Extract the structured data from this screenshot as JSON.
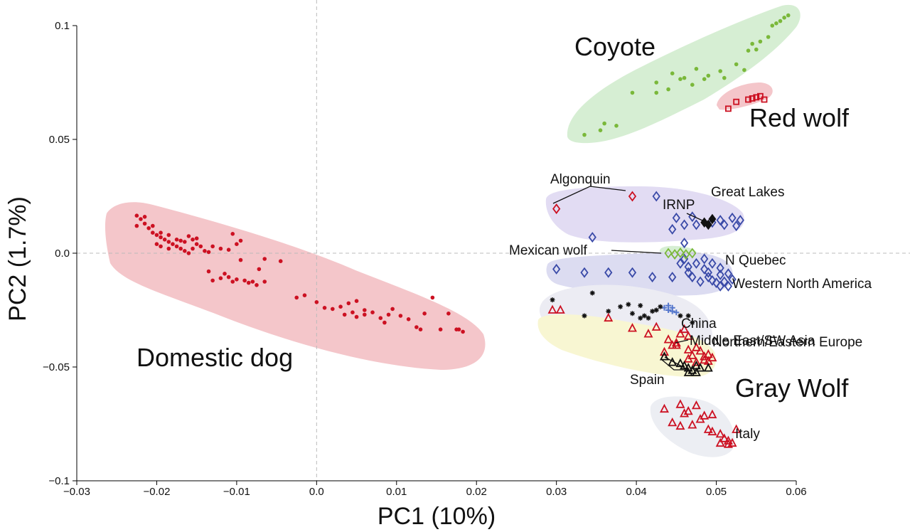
{
  "chart_data": {
    "type": "scatter",
    "xlabel": "PC1 (10%)",
    "ylabel": "PC2 (1.7%)",
    "xlim": [
      -0.03,
      0.06
    ],
    "ylim": [
      -0.1,
      0.1
    ],
    "xticks": [
      -0.03,
      -0.02,
      -0.01,
      0.0,
      0.01,
      0.02,
      0.03,
      0.04,
      0.05,
      0.06
    ],
    "yticks": [
      0.1,
      0.05,
      0.0,
      -0.05,
      -0.1
    ],
    "xtick_labels": [
      "−0.03",
      "−0.02",
      "−0.01",
      "0.0",
      "0.01",
      "0.02",
      "0.03",
      "0.04",
      "0.05",
      "0.06"
    ],
    "ytick_labels": [
      "0.1",
      "0.05",
      "0.0",
      "−0.05",
      "−0.1"
    ],
    "reference_lines": [
      {
        "axis": "x",
        "value": 0
      },
      {
        "axis": "y",
        "value": 0
      }
    ],
    "colors": {
      "dog": "#cc1122",
      "coyote": "#7ab83a",
      "gray_wolf_red": "#cc1122",
      "gray_wolf_blue": "#3a4aa8",
      "black": "#111111",
      "china": "#5577cc"
    },
    "groups": [
      {
        "label": "Domestic dog",
        "hull_color": "#f2c4c8"
      },
      {
        "label": "Coyote",
        "hull_color": "#d3ecd0"
      },
      {
        "label": "Red wolf",
        "hull_color": "#f2c4c8"
      },
      {
        "label": "Gray Wolf",
        "hull_color": "#e6e6f4"
      }
    ],
    "annotations": [
      {
        "text": "Algonquin"
      },
      {
        "text": "Great Lakes"
      },
      {
        "text": "IRNP"
      },
      {
        "text": "Mexican wolf"
      },
      {
        "text": "N Quebec"
      },
      {
        "text": "Western North America"
      },
      {
        "text": "China"
      },
      {
        "text": "Middle East/SW Asia"
      },
      {
        "text": "Northern/Eastern Europe"
      },
      {
        "text": "Spain"
      },
      {
        "text": "Italy"
      }
    ],
    "series": [
      {
        "marker": "dot",
        "color": "#cc1122",
        "points": [
          [
            -0.0225,
            0.0165
          ],
          [
            -0.022,
            0.015
          ],
          [
            -0.0215,
            0.013
          ],
          [
            -0.021,
            0.011
          ],
          [
            -0.0205,
            0.009
          ],
          [
            -0.02,
            0.008
          ],
          [
            -0.0195,
            0.007
          ],
          [
            -0.019,
            0.006
          ],
          [
            -0.0185,
            0.005
          ],
          [
            -0.018,
            0.004
          ],
          [
            -0.0175,
            0.003
          ],
          [
            -0.017,
            0.002
          ],
          [
            -0.0165,
            0.001
          ],
          [
            -0.016,
            0.0
          ],
          [
            -0.0155,
            0.002
          ],
          [
            -0.015,
            0.004
          ],
          [
            -0.0145,
            0.003
          ],
          [
            -0.014,
            0.001
          ],
          [
            -0.0135,
            0.0005
          ],
          [
            -0.013,
            0.003
          ],
          [
            -0.012,
            0.002
          ],
          [
            -0.011,
            0.0015
          ],
          [
            -0.01,
            0.004
          ],
          [
            -0.0095,
            0.0055
          ],
          [
            -0.0205,
            0.012
          ],
          [
            -0.0195,
            0.009
          ],
          [
            -0.0185,
            0.008
          ],
          [
            -0.0175,
            0.006
          ],
          [
            -0.0165,
            0.005
          ],
          [
            -0.0155,
            0.006
          ],
          [
            -0.0215,
            0.016
          ],
          [
            -0.0225,
            0.012
          ],
          [
            -0.02,
            0.004
          ],
          [
            -0.0185,
            0.002
          ],
          [
            -0.017,
            0.0055
          ],
          [
            -0.016,
            0.0075
          ],
          [
            -0.015,
            0.0065
          ],
          [
            -0.0195,
            0.003
          ],
          [
            -0.0105,
            0.0085
          ],
          [
            -0.0095,
            -0.003
          ],
          [
            -0.0072,
            -0.007
          ],
          [
            -0.0135,
            -0.008
          ],
          [
            -0.013,
            -0.012
          ],
          [
            -0.012,
            -0.011
          ],
          [
            -0.011,
            -0.0105
          ],
          [
            -0.01,
            -0.0115
          ],
          [
            -0.009,
            -0.012
          ],
          [
            -0.0085,
            -0.013
          ],
          [
            -0.008,
            -0.0125
          ],
          [
            -0.0075,
            -0.014
          ],
          [
            -0.0115,
            -0.009
          ],
          [
            -0.0105,
            -0.0125
          ],
          [
            -0.0065,
            -0.0125
          ],
          [
            -0.0045,
            -0.0035
          ],
          [
            -0.0065,
            -0.0025
          ],
          [
            -0.0025,
            -0.0195
          ],
          [
            -0.0015,
            -0.0185
          ],
          [
            0.0,
            -0.0215
          ],
          [
            0.001,
            -0.024
          ],
          [
            0.002,
            -0.0245
          ],
          [
            0.003,
            -0.0235
          ],
          [
            0.004,
            -0.022
          ],
          [
            0.005,
            -0.021
          ],
          [
            0.006,
            -0.025
          ],
          [
            0.0045,
            -0.026
          ],
          [
            0.0035,
            -0.027
          ],
          [
            0.005,
            -0.028
          ],
          [
            0.006,
            -0.027
          ],
          [
            0.007,
            -0.026
          ],
          [
            0.008,
            -0.0285
          ],
          [
            0.009,
            -0.027
          ],
          [
            0.0095,
            -0.0245
          ],
          [
            0.0105,
            -0.0275
          ],
          [
            0.0085,
            -0.0305
          ],
          [
            0.0115,
            -0.029
          ],
          [
            0.0125,
            -0.0325
          ],
          [
            0.013,
            -0.0335
          ],
          [
            0.0135,
            -0.0265
          ],
          [
            0.0145,
            -0.0195
          ],
          [
            0.0155,
            -0.0335
          ],
          [
            0.0175,
            -0.0335
          ],
          [
            0.0165,
            -0.0265
          ],
          [
            0.0178,
            -0.0335
          ],
          [
            0.0183,
            -0.0345
          ]
        ]
      },
      {
        "marker": "dot",
        "color": "#7ab83a",
        "points": [
          [
            0.0335,
            0.052
          ],
          [
            0.0355,
            0.054
          ],
          [
            0.036,
            0.057
          ],
          [
            0.0375,
            0.056
          ],
          [
            0.0395,
            0.0705
          ],
          [
            0.0425,
            0.075
          ],
          [
            0.044,
            0.072
          ],
          [
            0.0445,
            0.079
          ],
          [
            0.046,
            0.077
          ],
          [
            0.047,
            0.074
          ],
          [
            0.0475,
            0.081
          ],
          [
            0.049,
            0.078
          ],
          [
            0.0505,
            0.08
          ],
          [
            0.051,
            0.077
          ],
          [
            0.0525,
            0.083
          ],
          [
            0.0535,
            0.0805
          ],
          [
            0.054,
            0.089
          ],
          [
            0.055,
            0.0895
          ],
          [
            0.0545,
            0.092
          ],
          [
            0.0555,
            0.093
          ],
          [
            0.0565,
            0.095
          ],
          [
            0.057,
            0.1
          ],
          [
            0.0575,
            0.101
          ],
          [
            0.058,
            0.102
          ],
          [
            0.0585,
            0.1035
          ],
          [
            0.059,
            0.1045
          ],
          [
            0.0425,
            0.0705
          ],
          [
            0.0455,
            0.0765
          ],
          [
            0.0485,
            0.0765
          ]
        ]
      },
      {
        "marker": "open-square",
        "color": "#cc1122",
        "points": [
          [
            0.0515,
            0.0635
          ],
          [
            0.0525,
            0.0665
          ],
          [
            0.054,
            0.0675
          ],
          [
            0.055,
            0.0685
          ],
          [
            0.0555,
            0.069
          ],
          [
            0.056,
            0.0675
          ],
          [
            0.0545,
            0.068
          ]
        ]
      },
      {
        "marker": "open-diamond",
        "color": "#cc1122",
        "points": [
          [
            0.03,
            0.0195
          ],
          [
            0.0395,
            0.025
          ]
        ]
      },
      {
        "marker": "open-diamond",
        "color": "#3a4aa8",
        "points": [
          [
            0.0425,
            0.025
          ],
          [
            0.0345,
            0.007
          ],
          [
            0.0445,
            0.0105
          ],
          [
            0.045,
            0.0155
          ],
          [
            0.046,
            0.0125
          ],
          [
            0.047,
            0.016
          ],
          [
            0.0475,
            0.0125
          ],
          [
            0.0495,
            0.0135
          ],
          [
            0.0505,
            0.0145
          ],
          [
            0.051,
            0.0125
          ],
          [
            0.052,
            0.0155
          ],
          [
            0.053,
            0.0145
          ],
          [
            0.0525,
            0.012
          ],
          [
            0.046,
            0.0045
          ],
          [
            0.03,
            -0.007
          ],
          [
            0.0335,
            -0.0085
          ],
          [
            0.0365,
            -0.0085
          ],
          [
            0.0395,
            -0.0085
          ],
          [
            0.042,
            -0.0105
          ],
          [
            0.0445,
            -0.0105
          ],
          [
            0.0465,
            -0.006
          ],
          [
            0.047,
            -0.0105
          ],
          [
            0.0485,
            -0.007
          ],
          [
            0.049,
            -0.0105
          ],
          [
            0.0495,
            -0.012
          ],
          [
            0.05,
            -0.013
          ],
          [
            0.0505,
            -0.0145
          ],
          [
            0.051,
            -0.0125
          ],
          [
            0.0515,
            -0.0145
          ],
          [
            0.0505,
            -0.0065
          ],
          [
            0.0495,
            -0.0045
          ],
          [
            0.0485,
            -0.0025
          ],
          [
            0.049,
            -0.0085
          ],
          [
            0.0505,
            -0.0095
          ],
          [
            0.0515,
            -0.009
          ],
          [
            0.0475,
            -0.0045
          ],
          [
            0.0465,
            -0.0085
          ],
          [
            0.0455,
            -0.0045
          ],
          [
            0.048,
            -0.0125
          ],
          [
            0.052,
            -0.0115
          ],
          [
            0.046,
            -0.0025
          ]
        ]
      },
      {
        "marker": "filled-diamond",
        "color": "#111111",
        "points": [
          [
            0.0485,
            0.0135
          ],
          [
            0.049,
            0.0125
          ],
          [
            0.0495,
            0.015
          ]
        ]
      },
      {
        "marker": "open-diamond",
        "color": "#7ab83a",
        "points": [
          [
            0.044,
            0.0
          ],
          [
            0.0448,
            -0.0005
          ],
          [
            0.0455,
            0.0002
          ],
          [
            0.0462,
            -0.0005
          ],
          [
            0.047,
            0.0
          ]
        ]
      },
      {
        "marker": "cross",
        "color": "#5577cc",
        "points": [
          [
            0.0435,
            -0.024
          ],
          [
            0.044,
            -0.025
          ],
          [
            0.0445,
            -0.024
          ],
          [
            0.045,
            -0.026
          ],
          [
            0.044,
            -0.023
          ],
          [
            0.0445,
            -0.0255
          ]
        ]
      },
      {
        "marker": "asterisk",
        "color": "#111111",
        "points": [
          [
            0.0295,
            -0.0205
          ],
          [
            0.0335,
            -0.0275
          ],
          [
            0.0345,
            -0.0175
          ],
          [
            0.0365,
            -0.0255
          ],
          [
            0.038,
            -0.0235
          ],
          [
            0.039,
            -0.0225
          ],
          [
            0.0395,
            -0.0265
          ],
          [
            0.0405,
            -0.0285
          ],
          [
            0.041,
            -0.0275
          ],
          [
            0.0415,
            -0.0285
          ],
          [
            0.042,
            -0.0255
          ],
          [
            0.0425,
            -0.025
          ],
          [
            0.043,
            -0.0235
          ],
          [
            0.0405,
            -0.023
          ],
          [
            0.0455,
            -0.0275
          ],
          [
            0.0465,
            -0.0275
          ],
          [
            0.047,
            -0.0305
          ]
        ]
      },
      {
        "marker": "open-triangle",
        "color": "#cc1122",
        "points": [
          [
            0.0295,
            -0.025
          ],
          [
            0.0305,
            -0.025
          ],
          [
            0.0365,
            -0.0285
          ],
          [
            0.0395,
            -0.033
          ],
          [
            0.0415,
            -0.0355
          ],
          [
            0.0425,
            -0.0325
          ],
          [
            0.044,
            -0.038
          ],
          [
            0.045,
            -0.0395
          ],
          [
            0.046,
            -0.0335
          ],
          [
            0.0465,
            -0.0425
          ],
          [
            0.047,
            -0.045
          ],
          [
            0.048,
            -0.043
          ],
          [
            0.0485,
            -0.0455
          ],
          [
            0.049,
            -0.0445
          ],
          [
            0.0495,
            -0.046
          ],
          [
            0.0475,
            -0.0415
          ],
          [
            0.0465,
            -0.0365
          ],
          [
            0.045,
            -0.0405
          ],
          [
            0.0455,
            -0.0355
          ],
          [
            0.0445,
            -0.0405
          ],
          [
            0.0435,
            -0.0435
          ],
          [
            0.0485,
            -0.047
          ],
          [
            0.0475,
            -0.048
          ],
          [
            0.0465,
            -0.0465
          ],
          [
            0.049,
            -0.0475
          ]
        ]
      },
      {
        "marker": "open-triangle",
        "color": "#111111",
        "points": [
          [
            0.0435,
            -0.0455
          ],
          [
            0.0445,
            -0.048
          ],
          [
            0.0455,
            -0.0485
          ],
          [
            0.0465,
            -0.0505
          ],
          [
            0.047,
            -0.0515
          ],
          [
            0.0475,
            -0.0495
          ],
          [
            0.048,
            -0.0505
          ],
          [
            0.049,
            -0.0505
          ],
          [
            0.046,
            -0.0495
          ],
          [
            0.0465,
            -0.0525
          ],
          [
            0.0475,
            -0.0525
          ]
        ]
      },
      {
        "marker": "open-triangle",
        "color": "#cc1122",
        "points": [
          [
            0.0435,
            -0.0685
          ],
          [
            0.0455,
            -0.0665
          ],
          [
            0.046,
            -0.0705
          ],
          [
            0.0465,
            -0.0695
          ],
          [
            0.0475,
            -0.067
          ],
          [
            0.048,
            -0.073
          ],
          [
            0.0485,
            -0.0715
          ],
          [
            0.047,
            -0.0755
          ],
          [
            0.0455,
            -0.076
          ],
          [
            0.0445,
            -0.0745
          ],
          [
            0.049,
            -0.0775
          ],
          [
            0.0495,
            -0.0785
          ],
          [
            0.0505,
            -0.0795
          ],
          [
            0.051,
            -0.0815
          ],
          [
            0.0515,
            -0.0825
          ],
          [
            0.052,
            -0.0835
          ],
          [
            0.0525,
            -0.0775
          ],
          [
            0.0505,
            -0.0835
          ],
          [
            0.0515,
            -0.084
          ],
          [
            0.0495,
            -0.071
          ]
        ]
      }
    ]
  }
}
